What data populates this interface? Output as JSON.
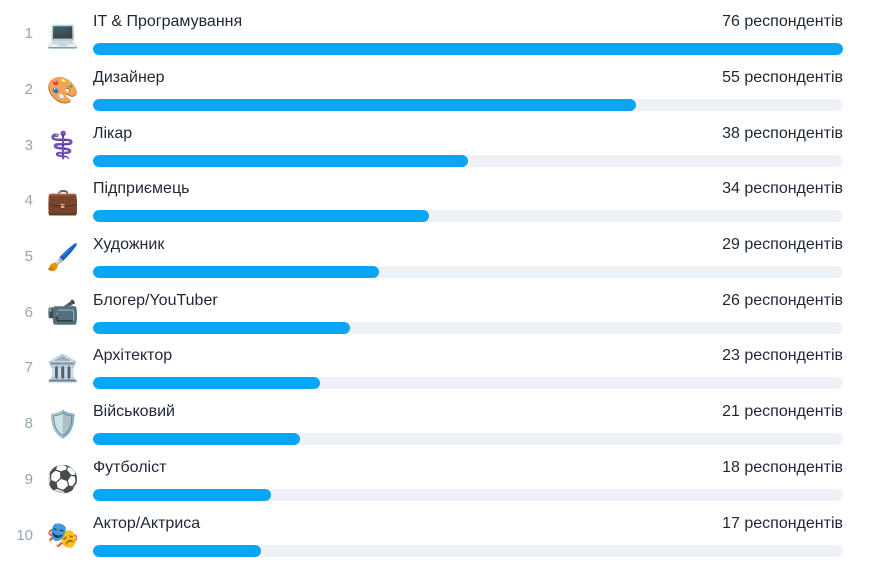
{
  "chart_data": {
    "type": "bar",
    "orientation": "horizontal",
    "title": "",
    "xlabel": "",
    "ylabel": "",
    "unit_label": "респондентів",
    "categories": [
      "IT & Програмування",
      "Дизайнер",
      "Лікар",
      "Підприємець",
      "Художник",
      "Блогер/YouTuber",
      "Архітектор",
      "Військовий",
      "Футболіст",
      "Актор/Актриса"
    ],
    "values": [
      76,
      55,
      38,
      34,
      29,
      26,
      23,
      21,
      18,
      17
    ],
    "max_value": 76,
    "bar_color": "#0aa5f5",
    "track_color": "#eef2f7",
    "text_color": "#1e2733",
    "rank_color": "#97a4b4",
    "legend": "off",
    "grid": "off"
  },
  "rows": [
    {
      "rank": "1",
      "emoji": "💻",
      "label": "IT & Програмування",
      "count": "76 респондентів",
      "value": 76
    },
    {
      "rank": "2",
      "emoji": "🎨",
      "label": "Дизайнер",
      "count": "55 респондентів",
      "value": 55
    },
    {
      "rank": "3",
      "emoji": "⚕️",
      "label": "Лікар",
      "count": "38 респондентів",
      "value": 38
    },
    {
      "rank": "4",
      "emoji": "💼",
      "label": "Підприємець",
      "count": "34 респондентів",
      "value": 34
    },
    {
      "rank": "5",
      "emoji": "🖌️",
      "label": "Художник",
      "count": "29 респондентів",
      "value": 29
    },
    {
      "rank": "6",
      "emoji": "📹",
      "label": "Блогер/YouTuber",
      "count": "26 респондентів",
      "value": 26
    },
    {
      "rank": "7",
      "emoji": "🏛️",
      "label": "Архітектор",
      "count": "23 респондентів",
      "value": 23
    },
    {
      "rank": "8",
      "emoji": "🛡️",
      "label": "Військовий",
      "count": "21 респондентів",
      "value": 21
    },
    {
      "rank": "9",
      "emoji": "⚽",
      "label": "Футболіст",
      "count": "18 респондентів",
      "value": 18
    },
    {
      "rank": "10",
      "emoji": "🎭",
      "label": "Актор/Актриса",
      "count": "17 респондентів",
      "value": 17
    }
  ]
}
